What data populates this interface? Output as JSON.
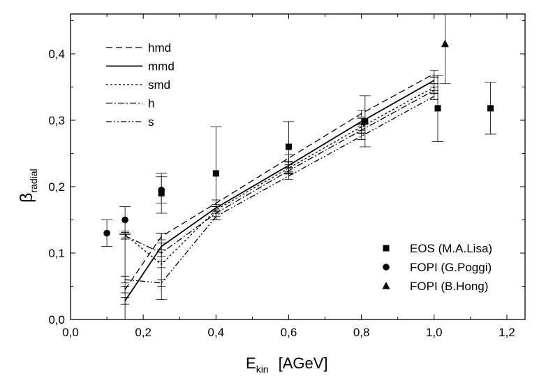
{
  "chart_data": {
    "type": "line",
    "xlabel": {
      "main": "E",
      "sub": "kin",
      "unit": "[AGeV]"
    },
    "ylabel": {
      "main": "β",
      "sub": "radial"
    },
    "xlim": [
      0.0,
      1.25
    ],
    "ylim": [
      0.0,
      0.46
    ],
    "xticks": [
      0.0,
      0.2,
      0.4,
      0.6,
      0.8,
      1.0,
      1.2
    ],
    "xtick_labels": [
      "0,0",
      "0,2",
      "0,4",
      "0,6",
      "0,8",
      "1,0",
      "1,2"
    ],
    "yticks": [
      0.0,
      0.1,
      0.2,
      0.3,
      0.4
    ],
    "ytick_labels": [
      "0,0",
      "0,1",
      "0,2",
      "0,3",
      "0,4"
    ],
    "grid": false,
    "model_series": [
      {
        "name": "hmd",
        "style": "dashed",
        "x": [
          0.15,
          0.25,
          0.4,
          0.6,
          0.8,
          1.0
        ],
        "y": [
          0.045,
          0.125,
          0.175,
          0.243,
          0.31,
          0.37
        ],
        "err": [
          0.005,
          0.005,
          0.005,
          0.005,
          0.005,
          0.005
        ]
      },
      {
        "name": "mmd",
        "style": "solid",
        "x": [
          0.15,
          0.25,
          0.4,
          0.6,
          0.8,
          1.0
        ],
        "y": [
          0.028,
          0.11,
          0.168,
          0.232,
          0.298,
          0.36
        ],
        "err": [
          0.005,
          0.005,
          0.005,
          0.005,
          0.005,
          0.005
        ]
      },
      {
        "name": "smd",
        "style": "dotted",
        "x": [
          0.15,
          0.25,
          0.4,
          0.6,
          0.8,
          1.0
        ],
        "y": [
          0.128,
          0.083,
          0.165,
          0.228,
          0.29,
          0.35
        ],
        "err": [
          0.005,
          0.005,
          0.005,
          0.005,
          0.005,
          0.005
        ]
      },
      {
        "name": "h",
        "style": "dashdot",
        "x": [
          0.15,
          0.25,
          0.4,
          0.6,
          0.8,
          1.0
        ],
        "y": [
          0.126,
          0.1,
          0.16,
          0.224,
          0.285,
          0.345
        ],
        "err": [
          0.005,
          0.005,
          0.005,
          0.005,
          0.005,
          0.005
        ]
      },
      {
        "name": "s",
        "style": "dashdotdot",
        "x": [
          0.15,
          0.25,
          0.4,
          0.6,
          0.8,
          1.0
        ],
        "y": [
          0.06,
          0.055,
          0.155,
          0.216,
          0.276,
          0.336
        ],
        "err": [
          0.005,
          0.005,
          0.005,
          0.005,
          0.005,
          0.005
        ]
      }
    ],
    "wide_error_bars": [
      {
        "x": 0.15,
        "low": 0.0,
        "high": 0.128
      },
      {
        "x": 0.25,
        "low": 0.03,
        "high": 0.13
      }
    ],
    "data_series": [
      {
        "name": "EOS (M.A.Lisa)",
        "marker": "square",
        "points": [
          {
            "x": 0.25,
            "y": 0.19,
            "low": 0.16,
            "high": 0.22
          },
          {
            "x": 0.4,
            "y": 0.22,
            "low": 0.15,
            "high": 0.29
          },
          {
            "x": 0.6,
            "y": 0.26,
            "low": 0.22,
            "high": 0.298
          },
          {
            "x": 0.81,
            "y": 0.298,
            "low": 0.26,
            "high": 0.337
          },
          {
            "x": 1.01,
            "y": 0.318,
            "low": 0.268,
            "high": 0.368
          },
          {
            "x": 1.155,
            "y": 0.318,
            "low": 0.279,
            "high": 0.357
          }
        ]
      },
      {
        "name": "FOPI (G.Poggi)",
        "marker": "circle",
        "points": [
          {
            "x": 0.1,
            "y": 0.13,
            "low": 0.11,
            "high": 0.15
          },
          {
            "x": 0.15,
            "y": 0.15,
            "low": 0.13,
            "high": 0.17
          },
          {
            "x": 0.25,
            "y": 0.195,
            "low": 0.175,
            "high": 0.215
          }
        ]
      },
      {
        "name": "FOPI (B.Hong)",
        "marker": "triangle",
        "points": [
          {
            "x": 1.03,
            "y": 0.415,
            "low": 0.355,
            "high": 0.475
          }
        ]
      }
    ]
  }
}
